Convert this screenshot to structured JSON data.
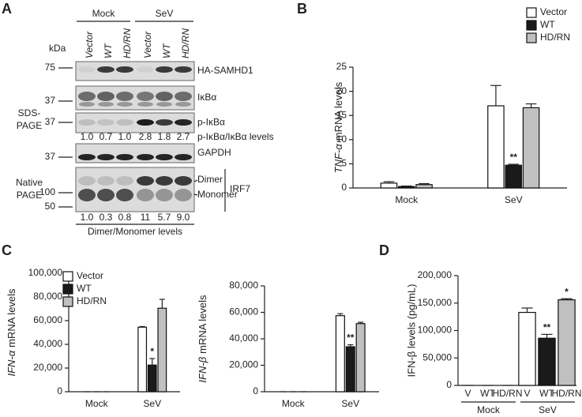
{
  "panel_a": {
    "letter": "A",
    "groups": [
      "Mock",
      "SeV"
    ],
    "lanes": [
      "Vector",
      "WT",
      "HD/RN",
      "Vector",
      "WT",
      "HD/RN"
    ],
    "kda": "kDa",
    "sds_label": [
      "SDS-",
      "PAGE"
    ],
    "native_label": [
      "Native",
      "PAGE"
    ],
    "rows": [
      {
        "label": "HA-SAMHD1",
        "marker": "75"
      },
      {
        "label": "IκBα",
        "marker": "37"
      },
      {
        "label": "p-IκBα",
        "marker": "37"
      },
      {
        "label": "GAPDH",
        "marker": "37"
      }
    ],
    "p_ikba_ratio": {
      "label": "p-IκBα/IκBα levels",
      "values": [
        "1.0",
        "0.7",
        "1.0",
        "2.8",
        "1.8",
        "2.7"
      ]
    },
    "native": {
      "markers": [
        "100",
        "50"
      ],
      "bands": [
        "Dimer",
        "Monomer"
      ],
      "label": "IRF7",
      "ratio_label": "Dimer/Monomer levels",
      "ratio_values": [
        "1.0",
        "0.3",
        "0.8",
        "11",
        "5.7",
        "9.0"
      ]
    }
  },
  "chart_data": [
    {
      "type": "bar",
      "panel": "B",
      "ylabel": [
        "TNF-α",
        "mRNA levels"
      ],
      "categories": [
        "Mock",
        "SeV"
      ],
      "series": [
        {
          "name": "Vector",
          "color": "#ffffff",
          "values": [
            1.0,
            17
          ],
          "errors": [
            0.3,
            4.2
          ],
          "annotations": [
            null,
            null
          ]
        },
        {
          "name": "WT",
          "color": "#1a1a1a",
          "values": [
            0.3,
            4.7
          ],
          "errors": [
            0.1,
            0.2
          ],
          "annotations": [
            null,
            "**"
          ]
        },
        {
          "name": "HD/RN",
          "color": "#c0c0c0",
          "values": [
            0.7,
            16.6
          ],
          "errors": [
            0.2,
            0.8
          ],
          "annotations": [
            null,
            null
          ]
        }
      ],
      "ylim": [
        0,
        25
      ],
      "yticks": [
        0,
        5,
        10,
        15,
        20,
        25
      ]
    },
    {
      "type": "bar",
      "panel": "C",
      "ylabel": [
        "IFN-α",
        "mRNA levels"
      ],
      "categories": [
        "Mock",
        "SeV"
      ],
      "series": [
        {
          "name": "Vector",
          "color": "#ffffff",
          "values": [
            0,
            54500
          ],
          "errors": [
            0,
            500
          ],
          "annotations": [
            null,
            null
          ]
        },
        {
          "name": "WT",
          "color": "#1a1a1a",
          "values": [
            0,
            22500
          ],
          "errors": [
            0,
            5500
          ],
          "annotations": [
            null,
            "*"
          ]
        },
        {
          "name": "HD/RN",
          "color": "#c0c0c0",
          "values": [
            0,
            70500
          ],
          "errors": [
            0,
            7500
          ],
          "annotations": [
            null,
            null
          ]
        }
      ],
      "ylim": [
        0,
        100000
      ],
      "yticks": [
        0,
        {
          "value": 20000,
          "label": "20,000"
        },
        {
          "value": 40000,
          "label": "40,000"
        },
        {
          "value": 60000,
          "label": "60,000"
        },
        {
          "value": 80000,
          "label": "80,000"
        },
        {
          "value": 100000,
          "label": "100,000"
        }
      ]
    },
    {
      "type": "bar",
      "ylabel": [
        "IFN-β",
        "mRNA levels"
      ],
      "categories": [
        "Mock",
        "SeV"
      ],
      "series": [
        {
          "color": "#ffffff",
          "values": [
            0,
            57500
          ],
          "errors": [
            0,
            1500
          ],
          "annotations": [
            null,
            null
          ]
        },
        {
          "color": "#1a1a1a",
          "values": [
            0,
            34000
          ],
          "errors": [
            0,
            1500
          ],
          "annotations": [
            null,
            "**"
          ]
        },
        {
          "color": "#c0c0c0",
          "values": [
            0,
            51500
          ],
          "errors": [
            0,
            1000
          ],
          "annotations": [
            null,
            null
          ]
        }
      ],
      "ylim": [
        0,
        80000
      ],
      "yticks": [
        0,
        {
          "value": 20000,
          "label": "20,000"
        },
        {
          "value": 40000,
          "label": "40,000"
        },
        {
          "value": 60000,
          "label": "60,000"
        },
        {
          "value": 80000,
          "label": "80,000"
        }
      ]
    },
    {
      "type": "bar",
      "panel": "D",
      "ylabel": "IFN-β levels (pg/mL)",
      "categories": [
        "V",
        "WT",
        "HD/RN",
        "V",
        "WT",
        "HD/RN"
      ],
      "groups": [
        "Mock",
        "SeV"
      ],
      "series": [
        {
          "colors": [
            "#ffffff",
            "#1a1a1a",
            "#c0c0c0",
            "#ffffff",
            "#1a1a1a",
            "#c0c0c0"
          ],
          "values": [
            0,
            0,
            0,
            133000,
            86000,
            156000
          ],
          "errors": [
            0,
            0,
            0,
            8000,
            7000,
            2000
          ],
          "annotations": [
            null,
            null,
            null,
            null,
            "**",
            "*"
          ]
        }
      ],
      "ylim": [
        0,
        200000
      ],
      "yticks": [
        0,
        {
          "value": 50000,
          "label": "50,000"
        },
        {
          "value": 100000,
          "label": "100,000"
        },
        {
          "value": 150000,
          "label": "150,000"
        },
        {
          "value": 200000,
          "label": "200,000"
        }
      ]
    }
  ]
}
